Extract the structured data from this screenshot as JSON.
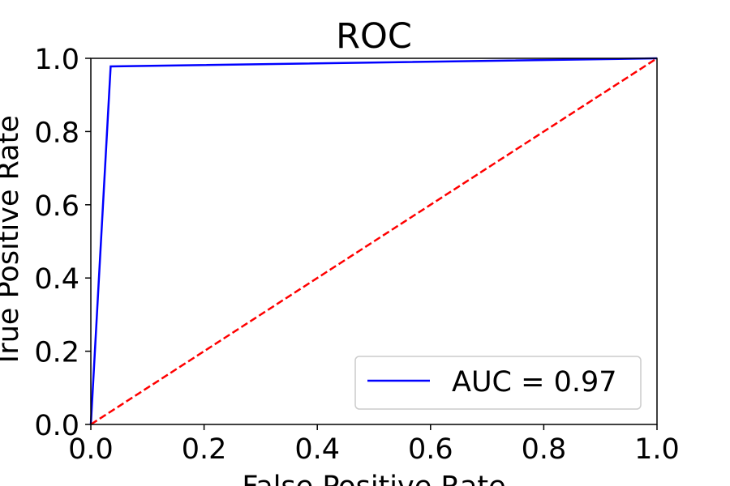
{
  "chart_data": {
    "type": "line",
    "title": "ROC",
    "xlabel": "False Positive Rate",
    "ylabel": "True Positive Rate",
    "xlim": [
      0.0,
      1.0
    ],
    "ylim": [
      0.0,
      1.0
    ],
    "xticks": [
      "0.0",
      "0.2",
      "0.4",
      "0.6",
      "0.8",
      "1.0"
    ],
    "yticks": [
      "0.0",
      "0.2",
      "0.4",
      "0.6",
      "0.8",
      "1.0"
    ],
    "grid": false,
    "legend_position": "lower-right",
    "series": [
      {
        "name": "AUC = 0.97",
        "color": "#0000ff",
        "style": "solid",
        "x": [
          0.0,
          0.035,
          1.0
        ],
        "y": [
          0.0,
          0.978,
          1.0
        ]
      },
      {
        "color": "#ff0000",
        "style": "dashed",
        "x": [
          0.0,
          1.0
        ],
        "y": [
          0.0,
          1.0
        ]
      }
    ]
  }
}
